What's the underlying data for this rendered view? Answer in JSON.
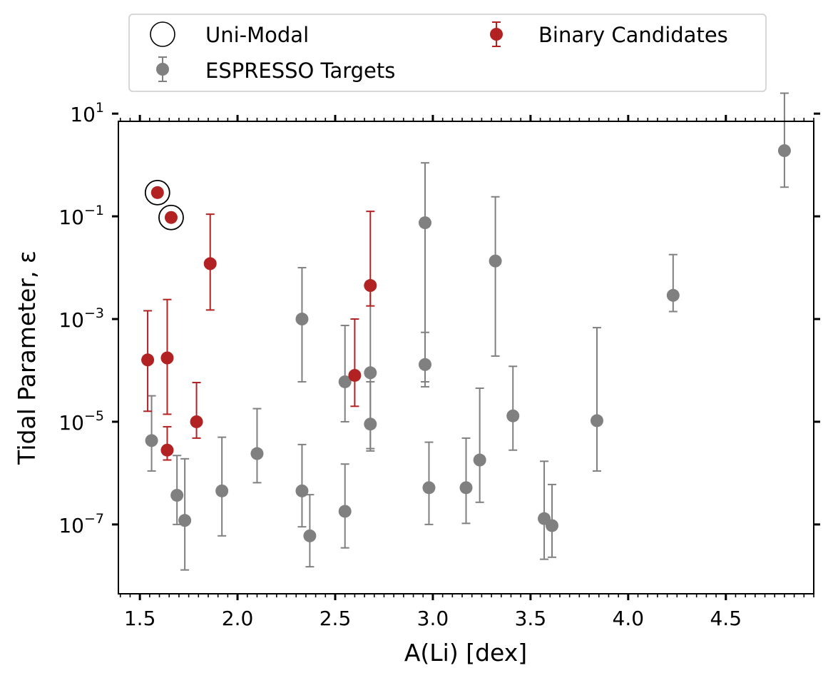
{
  "chart_data": {
    "type": "scatter",
    "xlabel": "A(Li) [dex]",
    "ylabel": "Tidal Parameter, ε",
    "y_scale": "log",
    "xlim": [
      1.39,
      4.95
    ],
    "ylim_log10": [
      -8.35,
      0.85
    ],
    "x_ticks": [
      1.5,
      2.0,
      2.5,
      3.0,
      3.5,
      4.0,
      4.5
    ],
    "x_tick_labels": [
      "1.5",
      "2.0",
      "2.5",
      "3.0",
      "3.5",
      "4.0",
      "4.5"
    ],
    "y_ticks_log10": [
      1,
      -1,
      -3,
      -5,
      -7
    ],
    "y_tick_labels": [
      {
        "base": "10",
        "exp": "1"
      },
      {
        "base": "10",
        "exp": "−1"
      },
      {
        "base": "10",
        "exp": "−3"
      },
      {
        "base": "10",
        "exp": "−5"
      },
      {
        "base": "10",
        "exp": "−7"
      }
    ],
    "legend": {
      "location": "above-plot",
      "entries": [
        {
          "key": "unimodal",
          "label": "Uni-Modal",
          "marker": "open-circle",
          "color": "#000000"
        },
        {
          "key": "espresso",
          "label": "ESPRESSO Targets",
          "marker": "filled-circle-errorbar",
          "color": "#808080"
        },
        {
          "key": "binary",
          "label": "Binary Candidates",
          "marker": "filled-circle-errorbar",
          "color": "#b22222"
        }
      ]
    },
    "series": [
      {
        "name": "ESPRESSO Targets",
        "color": "#808080",
        "points": [
          {
            "x": 1.56,
            "y": 4.3e-06,
            "lo": 1.1e-06,
            "hi": 3.2e-05
          },
          {
            "x": 1.69,
            "y": 3.7e-07,
            "lo": 1e-07,
            "hi": 2.2e-06
          },
          {
            "x": 1.73,
            "y": 1.2e-07,
            "lo": 1.3e-08,
            "hi": 1.9e-06
          },
          {
            "x": 1.92,
            "y": 4.5e-07,
            "lo": 6e-08,
            "hi": 5e-06
          },
          {
            "x": 2.1,
            "y": 2.4e-06,
            "lo": 6.5e-07,
            "hi": 1.8e-05
          },
          {
            "x": 2.33,
            "y": 0.001,
            "lo": 6e-05,
            "hi": 0.01
          },
          {
            "x": 2.33,
            "y": 4.5e-07,
            "lo": 9e-08,
            "hi": 3.6e-06
          },
          {
            "x": 2.37,
            "y": 6e-08,
            "lo": 1.5e-08,
            "hi": 3.8e-07
          },
          {
            "x": 2.55,
            "y": 6e-05,
            "lo": 1e-05,
            "hi": 0.00075
          },
          {
            "x": 2.55,
            "y": 1.8e-07,
            "lo": 3.5e-08,
            "hi": 1.5e-06
          },
          {
            "x": 2.68,
            "y": 9e-05,
            "lo": 3e-06,
            "hi": 0.0055
          },
          {
            "x": 2.68,
            "y": 9e-06,
            "lo": 2.7e-06,
            "hi": 6e-05
          },
          {
            "x": 2.96,
            "y": 0.075,
            "lo": 6e-05,
            "hi": 1.1
          },
          {
            "x": 2.96,
            "y": 0.00013,
            "lo": 4.8e-05,
            "hi": 0.00055
          },
          {
            "x": 2.98,
            "y": 5.2e-07,
            "lo": 1e-07,
            "hi": 4e-06
          },
          {
            "x": 3.17,
            "y": 5.2e-07,
            "lo": 1.05e-07,
            "hi": 4.8e-06
          },
          {
            "x": 3.24,
            "y": 1.8e-06,
            "lo": 2.7e-07,
            "hi": 4.5e-05
          },
          {
            "x": 3.32,
            "y": 0.0135,
            "lo": 0.00019,
            "hi": 0.24
          },
          {
            "x": 3.41,
            "y": 1.3e-05,
            "lo": 2.8e-06,
            "hi": 0.00012
          },
          {
            "x": 3.57,
            "y": 1.3e-07,
            "lo": 2.1e-08,
            "hi": 1.7e-06
          },
          {
            "x": 3.61,
            "y": 9.5e-08,
            "lo": 2.3e-08,
            "hi": 6e-07
          },
          {
            "x": 3.84,
            "y": 1.05e-05,
            "lo": 1.1e-06,
            "hi": 0.00068
          },
          {
            "x": 4.23,
            "y": 0.0029,
            "lo": 0.0014,
            "hi": 0.018
          },
          {
            "x": 4.8,
            "y": 1.9,
            "lo": 0.37,
            "hi": 25.0
          }
        ]
      },
      {
        "name": "Binary Candidates",
        "color": "#b22222",
        "points": [
          {
            "x": 1.54,
            "y": 0.00016,
            "lo": 1.6e-05,
            "hi": 0.00145
          },
          {
            "x": 1.59,
            "y": 0.29,
            "lo": 0.29,
            "hi": 0.29
          },
          {
            "x": 1.64,
            "y": 0.000175,
            "lo": 1.4e-05,
            "hi": 0.0024
          },
          {
            "x": 1.64,
            "y": 2.8e-06,
            "lo": 1.8e-06,
            "hi": 8e-06
          },
          {
            "x": 1.66,
            "y": 0.095,
            "lo": 0.095,
            "hi": 0.095
          },
          {
            "x": 1.79,
            "y": 1e-05,
            "lo": 4.8e-06,
            "hi": 5.8e-05
          },
          {
            "x": 1.86,
            "y": 0.012,
            "lo": 0.0015,
            "hi": 0.11
          },
          {
            "x": 2.6,
            "y": 8e-05,
            "lo": 2e-05,
            "hi": 0.001
          },
          {
            "x": 2.68,
            "y": 0.0045,
            "lo": 0.0018,
            "hi": 0.125
          }
        ]
      },
      {
        "name": "Uni-Modal",
        "color": "#000000",
        "marker": "open-circle",
        "points": [
          {
            "x": 1.59,
            "y": 0.29
          },
          {
            "x": 1.66,
            "y": 0.095
          }
        ]
      }
    ]
  }
}
